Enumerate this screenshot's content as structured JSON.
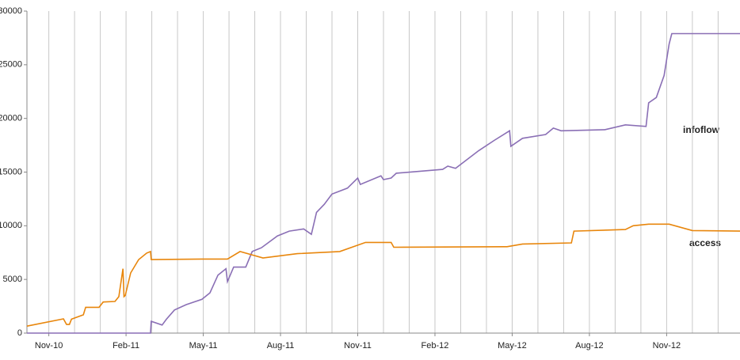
{
  "chart_data": {
    "type": "line",
    "xlim": [
      -0.85,
      26.85
    ],
    "xticks": [
      {
        "value": 0,
        "label": "Nov-10"
      },
      {
        "value": 3,
        "label": "Feb-11"
      },
      {
        "value": 6,
        "label": "May-11"
      },
      {
        "value": 9,
        "label": "Aug-11"
      },
      {
        "value": 12,
        "label": "Nov-11"
      },
      {
        "value": 15,
        "label": "Feb-12"
      },
      {
        "value": 18,
        "label": "May-12"
      },
      {
        "value": 21,
        "label": "Aug-12"
      },
      {
        "value": 24,
        "label": "Nov-12"
      }
    ],
    "xminorticks": [
      0,
      1,
      2,
      3,
      4,
      5,
      6,
      7,
      8,
      9,
      10,
      11,
      12,
      13,
      14,
      15,
      16,
      17,
      18,
      19,
      20,
      21,
      22,
      23,
      24,
      25,
      26
    ],
    "ylim": [
      0,
      30000
    ],
    "yticks": [
      0,
      5000,
      10000,
      15000,
      20000,
      25000,
      30000
    ],
    "grid": "x",
    "series": [
      {
        "name": "infoflow",
        "color": "#8a6fb5",
        "x": [
          -0.85,
          3.95,
          3.98,
          4.4,
          4.57,
          4.88,
          5.34,
          5.95,
          6.26,
          6.57,
          6.88,
          6.94,
          7.18,
          7.65,
          7.9,
          8.26,
          8.88,
          9.34,
          9.9,
          10.2,
          10.4,
          10.7,
          11.0,
          11.6,
          12.0,
          12.1,
          12.9,
          13.0,
          13.3,
          13.5,
          15.3,
          15.5,
          15.8,
          16.7,
          17.3,
          17.9,
          17.95,
          18.4,
          19.3,
          19.6,
          19.9,
          21.6,
          22.4,
          23.2,
          23.3,
          23.6,
          23.9,
          24.1,
          24.2,
          26.85
        ],
        "values": [
          0,
          0,
          1100,
          750,
          1300,
          2150,
          2650,
          3150,
          3750,
          5400,
          6000,
          4800,
          6150,
          6150,
          7600,
          7950,
          9050,
          9500,
          9700,
          9200,
          11250,
          12000,
          12950,
          13500,
          14450,
          13850,
          14650,
          14300,
          14450,
          14900,
          15250,
          15550,
          15350,
          17000,
          17950,
          18850,
          17400,
          18150,
          18500,
          19100,
          18850,
          18950,
          19400,
          19250,
          21450,
          21950,
          24000,
          26950,
          27900,
          27900
        ]
      },
      {
        "name": "access",
        "color": "#e8860c",
        "x": [
          -0.85,
          0.57,
          0.69,
          0.8,
          0.88,
          1.34,
          1.43,
          1.95,
          2.11,
          2.57,
          2.72,
          2.88,
          2.92,
          2.97,
          3.18,
          3.49,
          3.8,
          3.95,
          3.98,
          6.1,
          6.94,
          7.43,
          8.32,
          9.65,
          11.3,
          12.3,
          13.3,
          13.4,
          17.8,
          18.4,
          20.3,
          20.4,
          22.4,
          22.7,
          23.3,
          24.1,
          25.0,
          26.85
        ],
        "values": [
          650,
          1330,
          800,
          800,
          1300,
          1700,
          2400,
          2400,
          2900,
          2950,
          3400,
          6000,
          3400,
          3500,
          5600,
          6850,
          7450,
          7600,
          6850,
          6900,
          6900,
          7600,
          7000,
          7400,
          7600,
          8450,
          8450,
          8000,
          8050,
          8300,
          8400,
          9500,
          9650,
          10000,
          10150,
          10150,
          9550,
          9500
        ]
      }
    ]
  }
}
